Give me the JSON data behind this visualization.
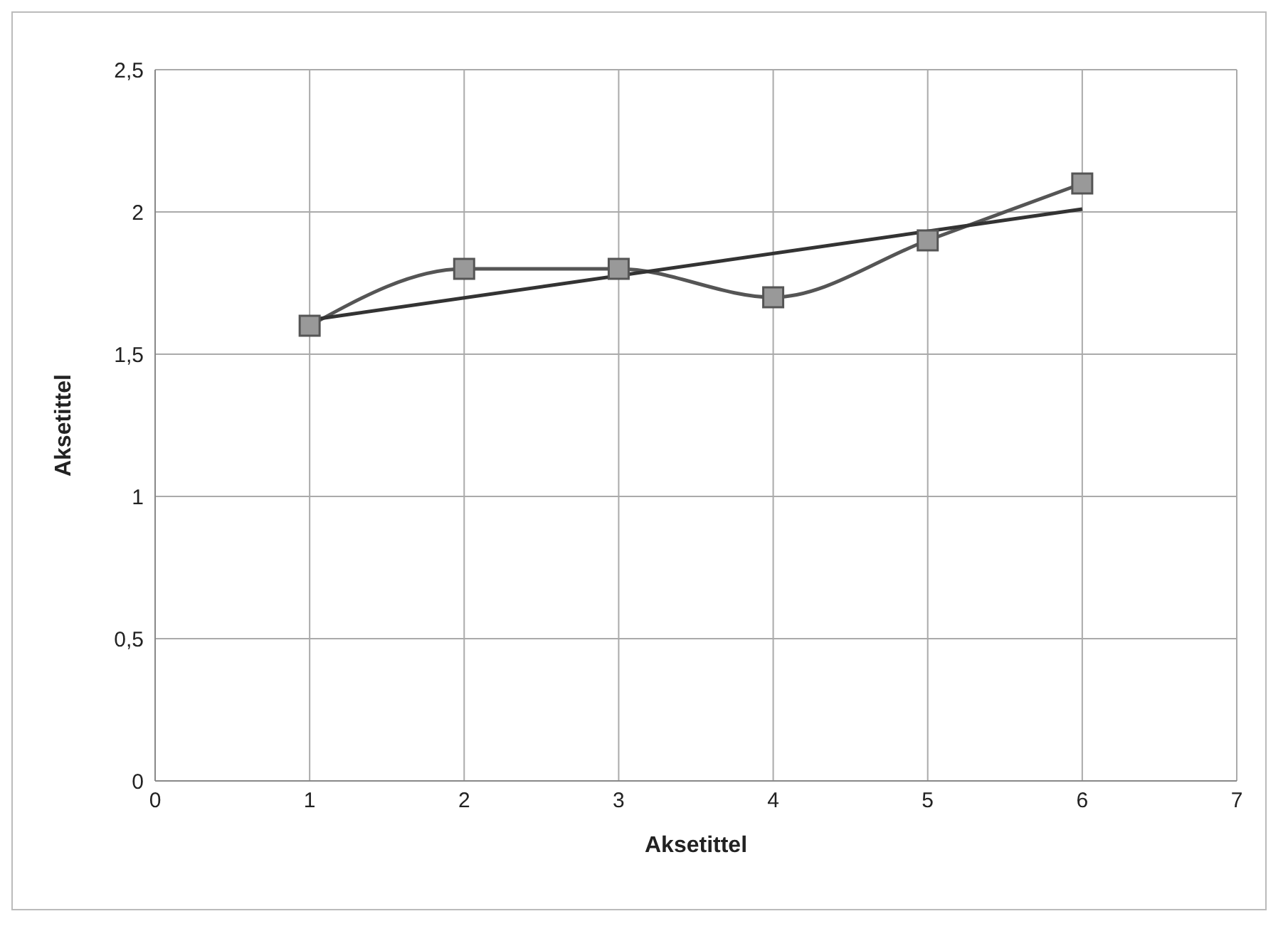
{
  "chart_data": {
    "type": "line",
    "xlabel": "Aksetittel",
    "ylabel": "Aksetittel",
    "xlim": [
      0,
      7
    ],
    "xticks": [
      0,
      1,
      2,
      3,
      4,
      5,
      6,
      7
    ],
    "ylim": [
      0,
      2.5
    ],
    "yticks": [
      0,
      {
        "value": 0.5,
        "label": "0,5"
      },
      1,
      {
        "value": 1.5,
        "label": "1,5"
      },
      2,
      {
        "value": 2.5,
        "label": "2,5"
      }
    ],
    "grid": true,
    "series": [
      {
        "color": "#555555",
        "x": [
          1,
          2,
          3,
          4,
          5,
          6
        ],
        "values": [
          1.6,
          1.8,
          1.8,
          1.7,
          1.9,
          2.1
        ],
        "marker": "square"
      },
      {
        "type": "line",
        "color": "#333333",
        "x": [
          1,
          6
        ],
        "values": [
          1.62,
          2.01
        ],
        "marker": "none"
      }
    ]
  }
}
